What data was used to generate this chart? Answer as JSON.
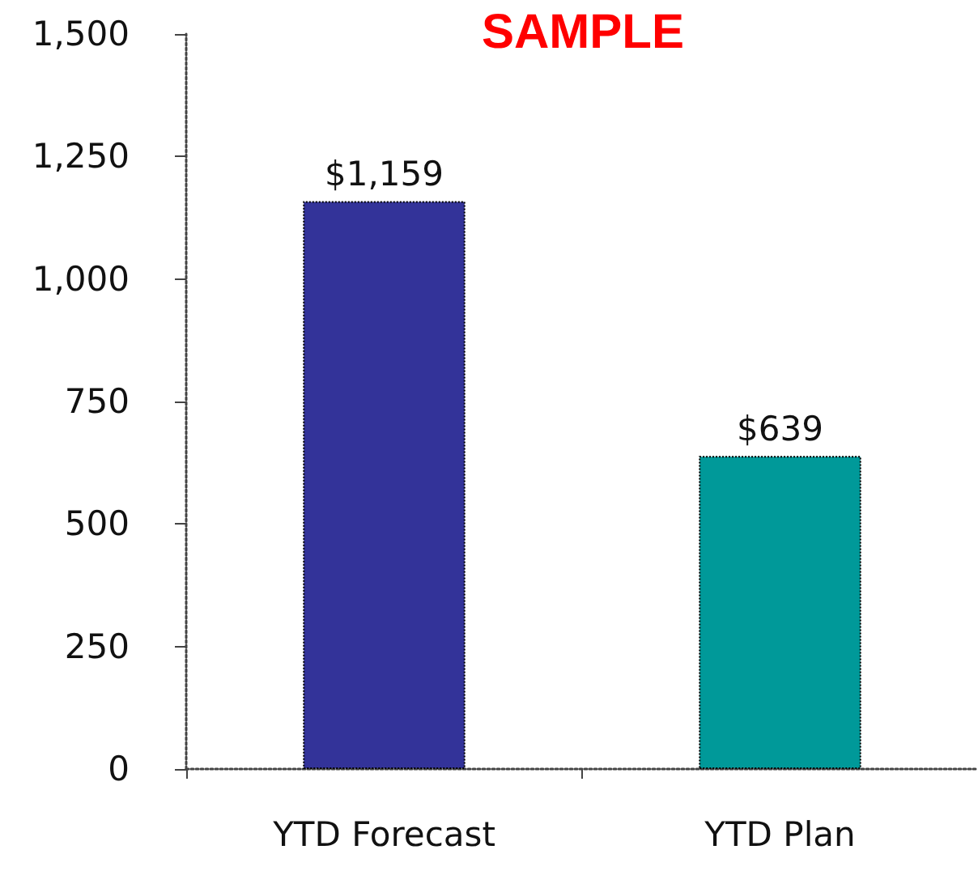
{
  "chart_data": {
    "type": "bar",
    "title": "SAMPLE",
    "categories": [
      "YTD Forecast",
      "YTD Plan"
    ],
    "values": [
      1159,
      639
    ],
    "colors": [
      "#333399",
      "#009999"
    ],
    "value_labels": [
      "$1,159",
      "$639"
    ],
    "ylim": [
      0,
      1500
    ],
    "yticks": [
      0,
      250,
      500,
      750,
      {
        "value": 1000,
        "label": "1,000"
      },
      {
        "value": 1250,
        "label": "1,250"
      },
      {
        "value": 1500,
        "label": "1,500"
      }
    ],
    "grid": false
  }
}
